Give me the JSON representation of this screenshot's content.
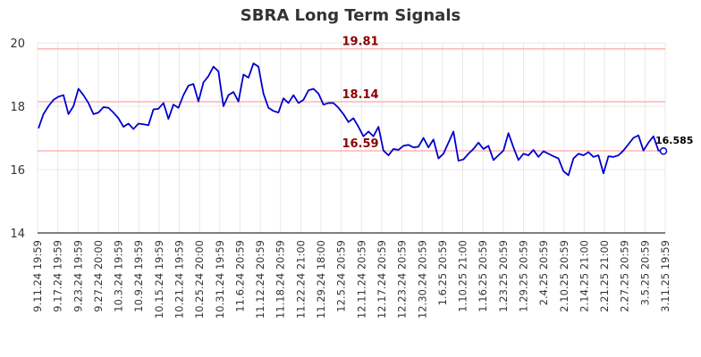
{
  "chart_data": {
    "type": "line",
    "title": "SBRA Long Term Signals",
    "ylim": [
      14,
      20
    ],
    "y_ticks": [
      14,
      16,
      18,
      20
    ],
    "grid": true,
    "x_tick_labels": [
      "9.11.24 19:59",
      "9.17.24 19:59",
      "9.23.24 19:59",
      "9.27.24 20:00",
      "10.3.24 19:59",
      "10.9.24 19:59",
      "10.15.24 19:59",
      "10.21.24 19:59",
      "10.25.24 20:00",
      "10.31.24 19:59",
      "11.6.24 20:59",
      "11.12.24 20:59",
      "11.18.24 20:59",
      "11.22.24 21:00",
      "11.29.24 18:00",
      "12.5.24 20:59",
      "12.11.24 20:59",
      "12.17.24 20:59",
      "12.23.24 20:59",
      "12.30.24 20:59",
      "1.6.25 20:59",
      "1.10.25 21:00",
      "1.16.25 20:59",
      "1.23.25 20:59",
      "1.29.25 20:59",
      "2.4.25 20:59",
      "2.10.25 20:59",
      "2.14.25 21:00",
      "2.21.25 21:00",
      "2.27.25 20:59",
      "3.5.25 20:59",
      "3.11.25 19:59"
    ],
    "levels": [
      {
        "value": 19.81,
        "label": "19.81"
      },
      {
        "value": 18.14,
        "label": "18.14"
      },
      {
        "value": 16.59,
        "label": "16.59"
      }
    ],
    "level_color": "#ffb3b3",
    "level_label_color": "#8b0000",
    "line_color": "#0000cc",
    "last_value_label": "16.585",
    "series": [
      {
        "values": [
          17.3,
          17.75,
          18.0,
          18.2,
          18.3,
          18.35,
          17.75,
          18.0,
          18.55,
          18.35,
          18.1,
          17.75,
          17.8,
          17.97,
          17.95,
          17.8,
          17.62,
          17.35,
          17.45,
          17.28,
          17.45,
          17.43,
          17.4,
          17.9,
          17.92,
          18.1,
          17.6,
          18.05,
          17.95,
          18.35,
          18.65,
          18.7,
          18.15,
          18.75,
          18.95,
          19.25,
          19.1,
          18.0,
          18.35,
          18.45,
          18.15,
          19.0,
          18.9,
          19.35,
          19.25,
          18.4,
          17.95,
          17.85,
          17.8,
          18.25,
          18.1,
          18.35,
          18.1,
          18.2,
          18.5,
          18.55,
          18.4,
          18.05,
          18.1,
          18.1,
          17.95,
          17.75,
          17.5,
          17.62,
          17.35,
          17.05,
          17.2,
          17.05,
          17.35,
          16.6,
          16.45,
          16.65,
          16.62,
          16.75,
          16.78,
          16.7,
          16.72,
          17.0,
          16.7,
          16.95,
          16.35,
          16.5,
          16.85,
          17.2,
          16.28,
          16.32,
          16.5,
          16.65,
          16.85,
          16.65,
          16.75,
          16.3,
          16.45,
          16.6,
          17.15,
          16.7,
          16.3,
          16.5,
          16.45,
          16.62,
          16.4,
          16.58,
          16.5,
          16.42,
          16.35,
          15.95,
          15.82,
          16.35,
          16.5,
          16.45,
          16.55,
          16.4,
          16.45,
          15.88,
          16.42,
          16.4,
          16.45,
          16.6,
          16.8,
          17.0,
          17.08,
          16.6,
          16.85,
          17.05,
          16.6,
          16.585
        ]
      }
    ]
  }
}
